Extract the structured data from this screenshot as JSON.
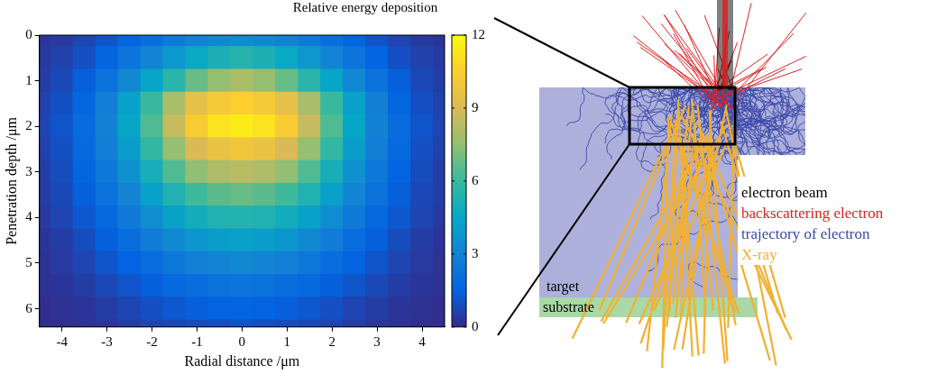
{
  "chart_data": {
    "type": "heatmap",
    "title": "Relative energy deposition",
    "x_label": "Radial distance /μm",
    "y_label": "Penetration depth /μm",
    "x": [
      -4.5,
      -4,
      -3.5,
      -3,
      -2.5,
      -2,
      -1.5,
      -1,
      -0.5,
      0,
      0.5,
      1,
      1.5,
      2,
      2.5,
      3,
      3.5,
      4,
      4.5
    ],
    "y": [
      0,
      0.5,
      1,
      1.5,
      2,
      2.5,
      3,
      3.5,
      4,
      4.5,
      5,
      5.5,
      6,
      6.5
    ],
    "values": [
      [
        0.3,
        0.4,
        0.7,
        1.1,
        1.6,
        2.1,
        2.6,
        3,
        3.3,
        3.5,
        3.3,
        3,
        2.6,
        2.1,
        1.6,
        1.1,
        0.7,
        0.4,
        0.3
      ],
      [
        0.4,
        0.6,
        1,
        1.6,
        2.3,
        3.1,
        3.9,
        4.6,
        5.2,
        5.5,
        5.2,
        4.6,
        3.9,
        3.1,
        2.3,
        1.6,
        1,
        0.6,
        0.4
      ],
      [
        0.5,
        0.8,
        1.4,
        2.2,
        3.2,
        4.4,
        5.6,
        6.8,
        7.6,
        8,
        7.6,
        6.8,
        5.6,
        4.4,
        3.2,
        2.2,
        1.4,
        0.8,
        0.5
      ],
      [
        0.6,
        1,
        1.7,
        2.8,
        4.2,
        6,
        8,
        9.5,
        10.2,
        10.5,
        10.2,
        9.5,
        8,
        6,
        4.2,
        2.8,
        1.7,
        1,
        0.6
      ],
      [
        0.7,
        1.1,
        1.9,
        3,
        4.5,
        6.4,
        8.6,
        10.3,
        11.2,
        11.5,
        11.2,
        10.3,
        8.6,
        6.4,
        4.5,
        3,
        1.9,
        1.1,
        0.7
      ],
      [
        0.6,
        1,
        1.8,
        2.8,
        4.1,
        5.8,
        7.6,
        9,
        9.7,
        10,
        9.7,
        9,
        7.6,
        5.8,
        4.1,
        2.8,
        1.8,
        1,
        0.6
      ],
      [
        0.5,
        0.9,
        1.6,
        2.5,
        3.6,
        5,
        6.4,
        7.5,
        8.1,
        8.3,
        8.1,
        7.5,
        6.4,
        5,
        3.6,
        2.5,
        1.6,
        0.9,
        0.5
      ],
      [
        0.5,
        0.8,
        1.4,
        2.2,
        3.1,
        4.2,
        5.3,
        6.1,
        6.6,
        6.8,
        6.6,
        6.1,
        5.3,
        4.2,
        3.1,
        2.2,
        1.4,
        0.8,
        0.5
      ],
      [
        0.4,
        0.7,
        1.2,
        1.8,
        2.6,
        3.4,
        4.3,
        4.9,
        5.3,
        5.4,
        5.3,
        4.9,
        4.3,
        3.4,
        2.6,
        1.8,
        1.2,
        0.7,
        0.4
      ],
      [
        0.3,
        0.5,
        0.9,
        1.4,
        2,
        2.7,
        3.3,
        3.8,
        4.1,
        4.2,
        4.1,
        3.8,
        3.3,
        2.7,
        2,
        1.4,
        0.9,
        0.5,
        0.3
      ],
      [
        0.2,
        0.4,
        0.7,
        1.1,
        1.5,
        2,
        2.5,
        2.9,
        3.1,
        3.2,
        3.1,
        2.9,
        2.5,
        2,
        1.5,
        1.1,
        0.7,
        0.4,
        0.2
      ],
      [
        0.2,
        0.3,
        0.5,
        0.8,
        1.1,
        1.4,
        1.8,
        2,
        2.2,
        2.3,
        2.2,
        2,
        1.8,
        1.4,
        1.1,
        0.8,
        0.5,
        0.3,
        0.2
      ],
      [
        0.1,
        0.2,
        0.3,
        0.5,
        0.7,
        1,
        1.2,
        1.4,
        1.5,
        1.6,
        1.5,
        1.4,
        1.2,
        1,
        0.7,
        0.5,
        0.3,
        0.2,
        0.1
      ],
      [
        0.1,
        0.1,
        0.2,
        0.3,
        0.5,
        0.7,
        0.8,
        0.9,
        1,
        1.1,
        1,
        0.9,
        0.8,
        0.7,
        0.5,
        0.3,
        0.2,
        0.1,
        0.1
      ]
    ],
    "xlim": [
      -4.5,
      4.5
    ],
    "xticks": [
      -4,
      -3,
      -2,
      -1,
      0,
      1,
      2,
      3,
      4
    ],
    "ylim": [
      6.4,
      0
    ],
    "yticks": [
      0,
      1,
      2,
      3,
      4,
      5,
      6
    ],
    "grid": false,
    "colorbar": {
      "range": [
        0,
        12
      ],
      "ticks": [
        0,
        3,
        6,
        9,
        12
      ]
    }
  },
  "diagram": {
    "legend": [
      {
        "text": "electron beam",
        "color": "#000000"
      },
      {
        "text": "backscattering electron",
        "color": "#e02020"
      },
      {
        "text": "trajectory of electron",
        "color": "#3a4aa8"
      },
      {
        "text": "X-ray",
        "color": "#f2b030"
      }
    ],
    "layers": [
      {
        "text": "target",
        "color": "#aeb0dc"
      },
      {
        "text": "substrate",
        "color": "#a8d9a6"
      }
    ]
  }
}
